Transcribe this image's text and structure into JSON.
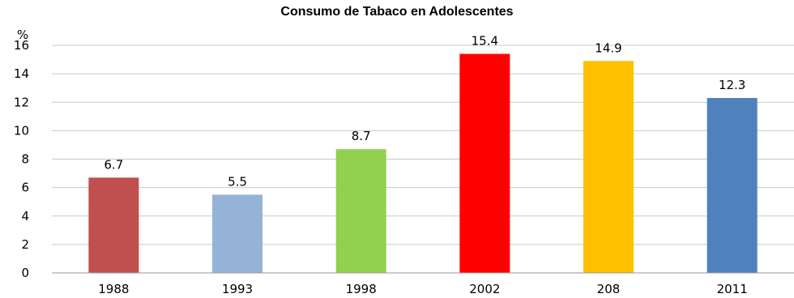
{
  "chart_data": {
    "type": "bar",
    "title": "Consumo de Tabaco en Adolescentes",
    "ylabel": "%",
    "xlabel": "",
    "categories": [
      "1988",
      "1993",
      "1998",
      "2002",
      "208",
      "2011"
    ],
    "values": [
      6.7,
      5.5,
      8.7,
      15.4,
      14.9,
      12.3
    ],
    "data_labels": [
      "6.7",
      "5.5",
      "8.7",
      "15.4",
      "14.9",
      "12.3"
    ],
    "colors": [
      "#c0504d",
      "#95b3d7",
      "#92d050",
      "#ff0000",
      "#ffc000",
      "#4f81bd"
    ],
    "ylim": [
      0,
      16
    ],
    "yticks": [
      0,
      2,
      4,
      6,
      8,
      10,
      12,
      14,
      16
    ],
    "grid": true,
    "legend": "none"
  }
}
